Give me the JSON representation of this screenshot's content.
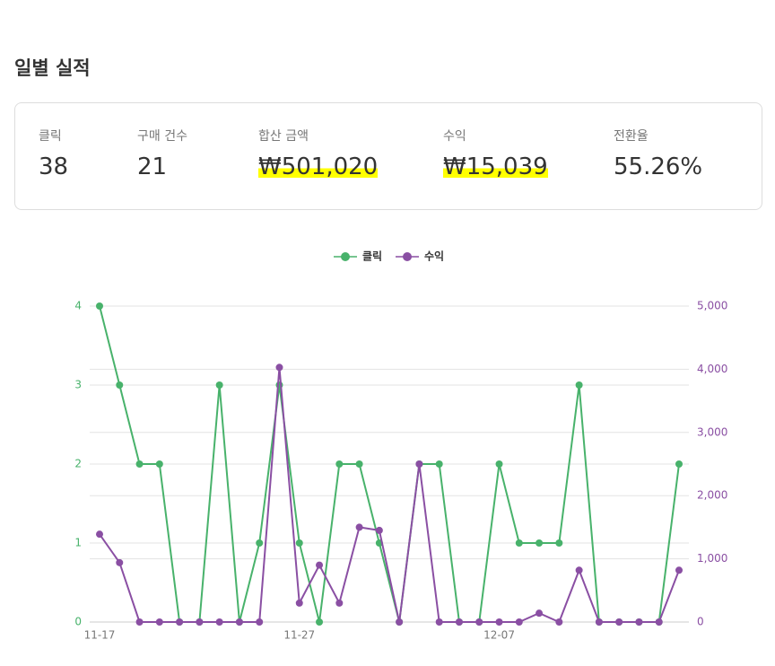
{
  "header": {
    "title": "일별 실적"
  },
  "stats": [
    {
      "label": "클릭",
      "value": "38"
    },
    {
      "label": "구매 건수",
      "value": "21"
    },
    {
      "label": "합산 금액",
      "value": "₩501,020"
    },
    {
      "label": "수익",
      "value": "₩15,039"
    },
    {
      "label": "전환율",
      "value": "55.26%"
    }
  ],
  "chart_data": {
    "type": "line",
    "categories": [
      "11-17",
      null,
      null,
      null,
      null,
      null,
      null,
      null,
      null,
      null,
      "11-27",
      null,
      null,
      null,
      null,
      null,
      null,
      null,
      null,
      null,
      "12-07",
      null,
      null,
      null,
      null,
      null,
      null,
      null,
      null,
      null
    ],
    "series": [
      {
        "name": "클릭",
        "color": "#48b26b",
        "values": [
          4,
          3,
          2,
          2,
          0,
          0,
          3,
          0,
          1,
          3,
          1,
          0,
          2,
          2,
          1,
          0,
          2,
          2,
          0,
          0,
          2,
          1,
          1,
          1,
          3,
          0,
          0,
          0,
          0,
          2
        ]
      },
      {
        "name": "수익",
        "color": "#8a4fa3",
        "axis": "y2",
        "values": [
          1390,
          940,
          0,
          0,
          0,
          0,
          0,
          0,
          0,
          4030,
          300,
          900,
          300,
          1500,
          1450,
          0,
          2500,
          0,
          0,
          0,
          0,
          0,
          140,
          0,
          820,
          0,
          0,
          0,
          0,
          820
        ]
      }
    ],
    "ylim": [
      0,
      4
    ],
    "yticks": [
      0,
      1,
      2,
      3,
      4
    ],
    "y2lim": [
      0,
      5000
    ],
    "y2ticks": [
      0,
      {
        "value": 1000,
        "label": "1,000"
      },
      {
        "value": 2000,
        "label": "2,000"
      },
      {
        "value": 3000,
        "label": "3,000"
      },
      {
        "value": 4000,
        "label": "4,000"
      },
      {
        "value": 5000,
        "label": "5,000"
      }
    ],
    "grid": true,
    "legend": "top"
  }
}
